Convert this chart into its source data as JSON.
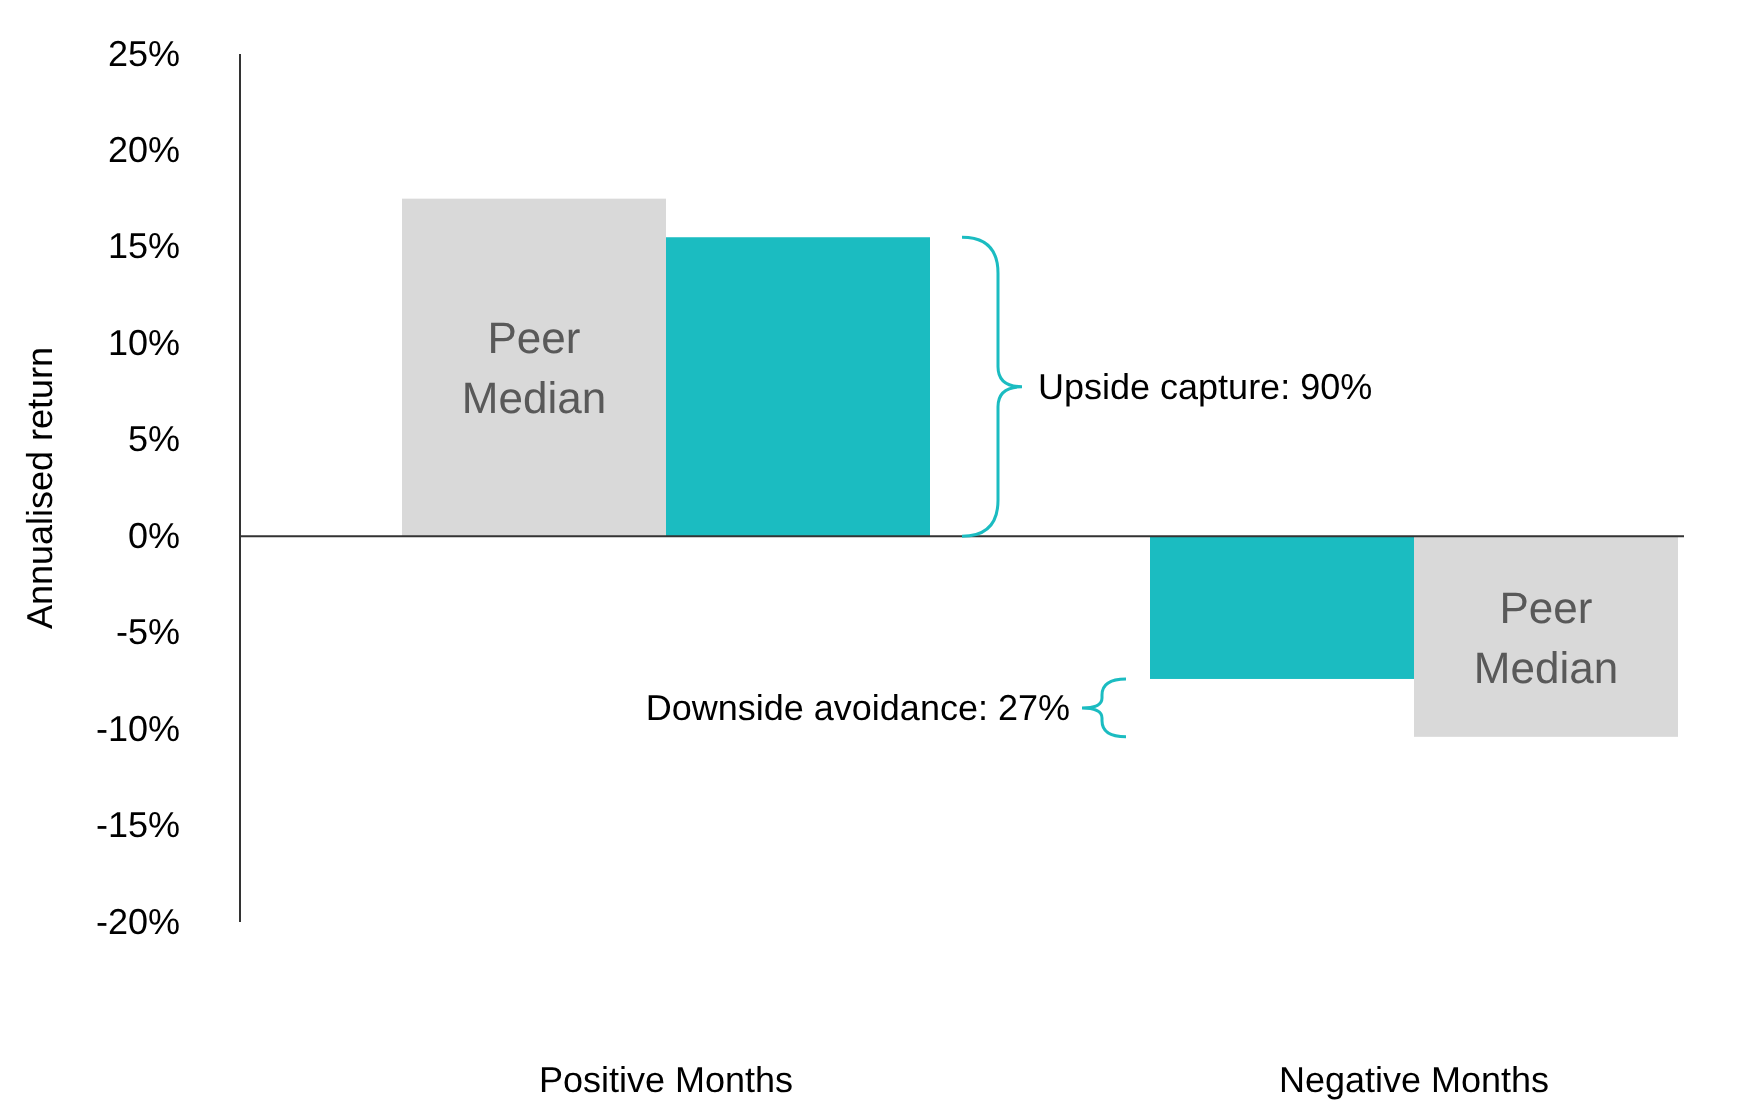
{
  "chart_data": {
    "type": "bar",
    "ylabel": "Annualised return",
    "categories": [
      "Positive Months",
      "Negative Months"
    ],
    "series": [
      {
        "name": "Peer Median",
        "color": "#d9d9d9",
        "values": [
          17.5,
          -10.4
        ]
      },
      {
        "color": "#1bbcc1",
        "values": [
          15.5,
          -7.4
        ]
      }
    ],
    "ylim": [
      -20,
      25
    ],
    "yticks": [
      {
        "value": -20,
        "label": "-20%"
      },
      {
        "value": -15,
        "label": "-15%"
      },
      {
        "value": -10,
        "label": "-10%"
      },
      {
        "value": -5,
        "label": "-5%"
      },
      {
        "value": 0,
        "label": "0%"
      },
      {
        "value": 5,
        "label": "5%"
      },
      {
        "value": 10,
        "label": "10%"
      },
      {
        "value": 15,
        "label": "15%"
      },
      {
        "value": 20,
        "label": "20%"
      },
      {
        "value": 25,
        "label": "25%"
      }
    ],
    "annotations": [
      "Upside capture: 90%",
      "Downside avoidance: 27%"
    ],
    "data_labels": false
  }
}
